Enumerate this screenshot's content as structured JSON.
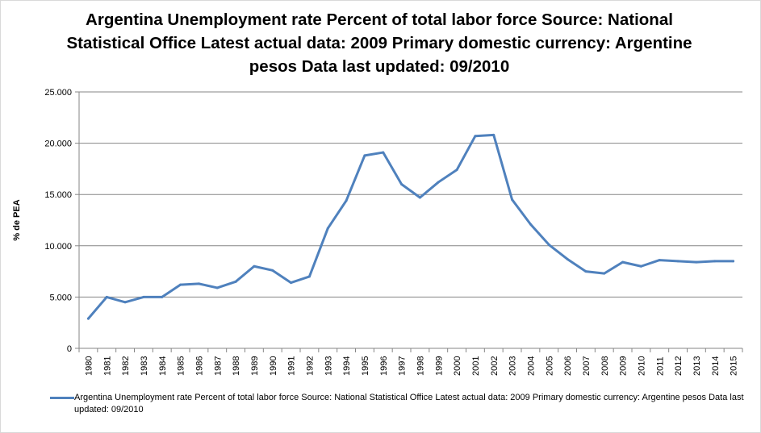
{
  "chart_data": {
    "type": "line",
    "title": "Argentina Unemployment rate Percent of total labor force Source: National Statistical Office Latest actual data: 2009 Primary domestic currency: Argentine pesos Data last updated: 09/2010",
    "xlabel": "",
    "ylabel": "% de PEA",
    "ylim": [
      0,
      25
    ],
    "yticks": [
      0,
      5,
      10,
      15,
      20,
      25
    ],
    "ytick_labels": [
      "0",
      "5.000",
      "10.000",
      "15.000",
      "20.000",
      "25.000"
    ],
    "grid": true,
    "legend_position": "bottom",
    "x": [
      "1980",
      "1981",
      "1982",
      "1983",
      "1984",
      "1985",
      "1986",
      "1987",
      "1988",
      "1989",
      "1990",
      "1991",
      "1992",
      "1993",
      "1994",
      "1995",
      "1996",
      "1997",
      "1998",
      "1999",
      "2000",
      "2001",
      "2002",
      "2003",
      "2004",
      "2005",
      "2006",
      "2007",
      "2008",
      "2009",
      "2010",
      "2011",
      "2012",
      "2013",
      "2014",
      "2015"
    ],
    "series": [
      {
        "name": "Argentina Unemployment rate Percent of total labor force Source: National Statistical Office Latest actual data: 2009 Primary domestic currency: Argentine pesos Data last updated: 09/2010",
        "color": "#4f81bd",
        "values": [
          2.9,
          5.0,
          4.5,
          5.0,
          5.0,
          6.2,
          6.3,
          5.9,
          6.5,
          8.0,
          7.6,
          6.4,
          7.0,
          11.7,
          14.4,
          18.8,
          19.1,
          16.0,
          14.7,
          16.2,
          17.4,
          20.7,
          20.8,
          14.5,
          12.1,
          10.1,
          8.7,
          7.5,
          7.3,
          8.4,
          8.0,
          8.6,
          8.5,
          8.4,
          8.5,
          8.5
        ]
      }
    ]
  }
}
